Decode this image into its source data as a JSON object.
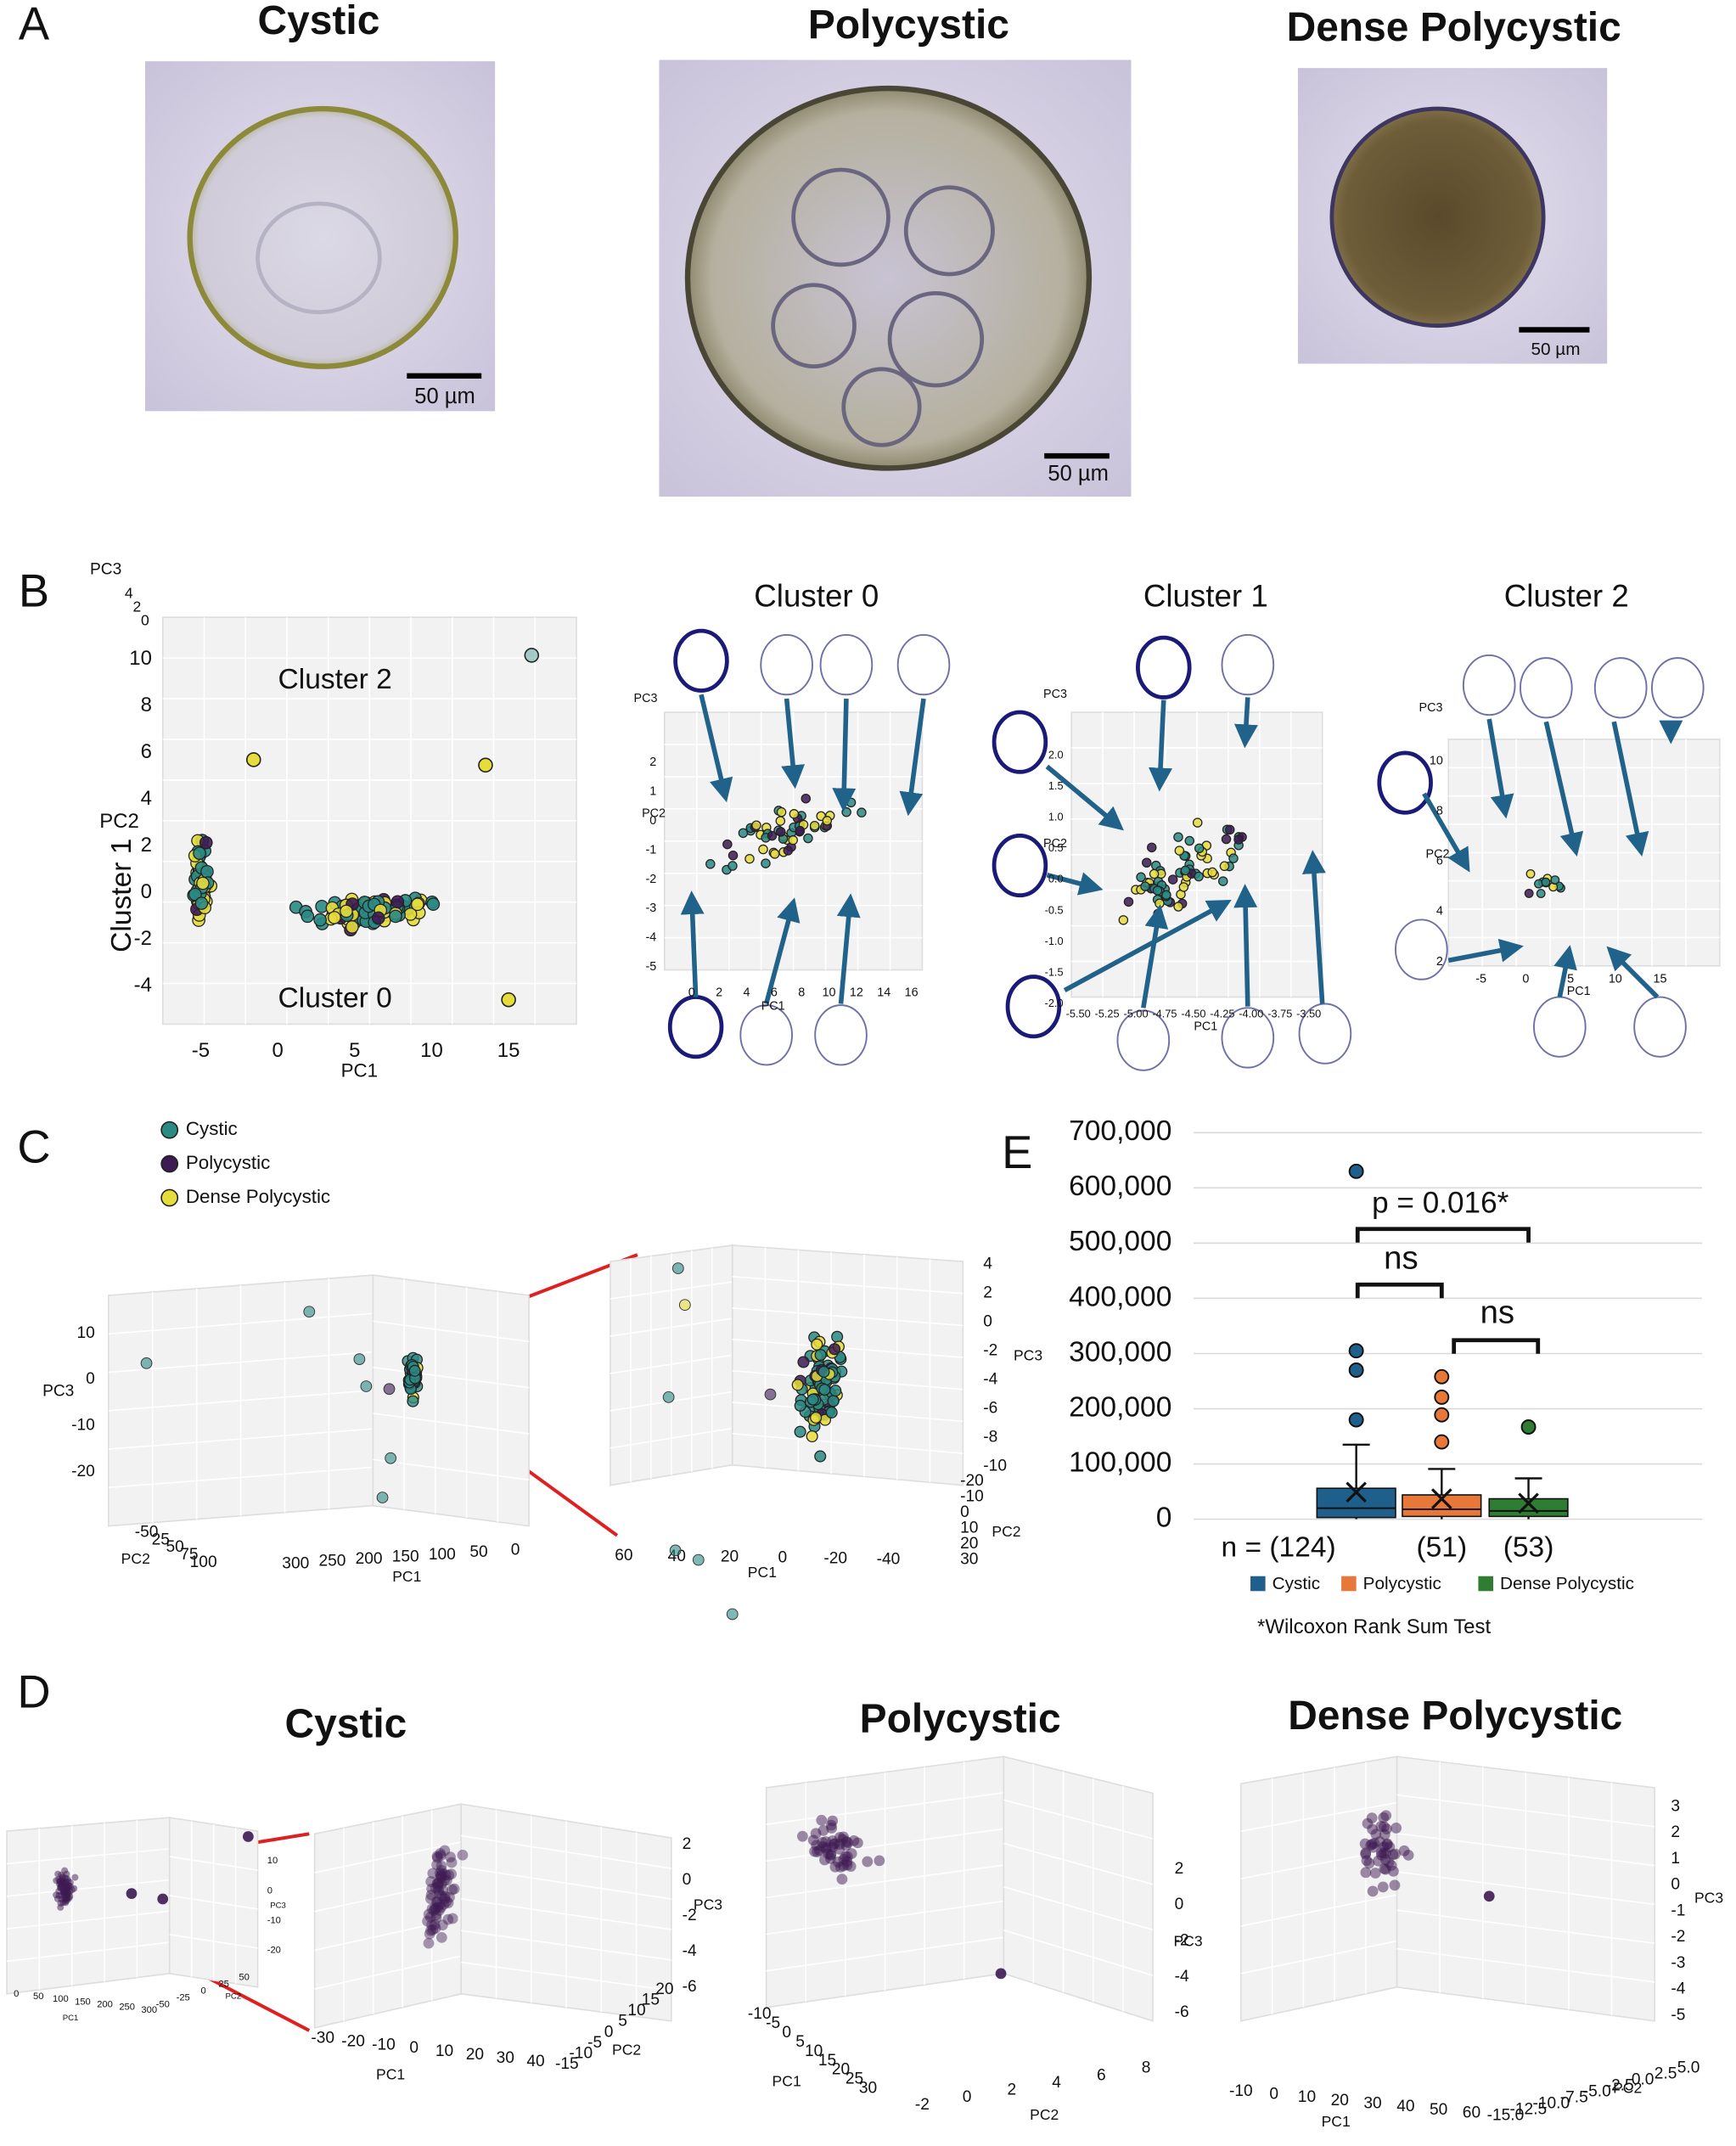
{
  "labels": [
    "A",
    "B",
    "C",
    "D",
    "E"
  ],
  "panel_a": {
    "images": [
      {
        "title": "Cystic",
        "scale_bar": "50 µm"
      },
      {
        "title": "Polycystic",
        "scale_bar": "50 µm"
      },
      {
        "title": "Dense Polycystic",
        "scale_bar": "50 µm"
      }
    ]
  },
  "panel_b": {
    "main": {
      "x_label": "PC1",
      "y_label": "PC2",
      "z_label": "PC3",
      "xticks": [
        "-5",
        "0",
        "5",
        "10",
        "15"
      ],
      "yticks": [
        "10",
        "8",
        "6",
        "4",
        "2",
        "0",
        "-2",
        "-4"
      ],
      "zticks": [
        "4",
        "2",
        "0"
      ],
      "clusters": [
        "Cluster 2",
        "Cluster 1",
        "Cluster 0"
      ]
    },
    "subplots": [
      {
        "title": "Cluster 0",
        "x_label": "PC1",
        "y_label": "PC2",
        "z_label": "PC3",
        "xticks": [
          "0",
          "2",
          "4",
          "6",
          "8",
          "10",
          "12",
          "14",
          "16"
        ],
        "yticks": [
          "2",
          "1",
          "0",
          "-1",
          "-2",
          "-3",
          "-4",
          "-5"
        ]
      },
      {
        "title": "Cluster 1",
        "x_label": "PC1",
        "y_label": "PC2",
        "z_label": "PC3",
        "xticks": [
          "-5.50",
          "-5.25",
          "-5.00",
          "-4.75",
          "-4.50",
          "-4.25",
          "-4.00",
          "-3.75",
          "-3.50"
        ],
        "yticks": [
          "2.0",
          "1.5",
          "1.0",
          "0.5",
          "0.0",
          "-0.5",
          "-1.0",
          "-1.5",
          "-2.0"
        ]
      },
      {
        "title": "Cluster 2",
        "x_label": "PC1",
        "y_label": "PC2",
        "z_label": "PC3",
        "xticks": [
          "-5",
          "0",
          "5",
          "10",
          "15"
        ],
        "yticks": [
          "10",
          "8",
          "6",
          "4",
          "2"
        ]
      }
    ]
  },
  "panel_c": {
    "legend": [
      "Cystic",
      "Polycystic",
      "Dense Polycystic"
    ],
    "overview": {
      "x_label": "PC1",
      "y_label": "PC2",
      "z_label": "PC3",
      "xticks": [
        "300",
        "250",
        "200",
        "150",
        "100",
        "50",
        "0"
      ],
      "yticks": [
        "-50",
        "25",
        "50",
        "75",
        "100"
      ],
      "zticks": [
        "10",
        "0",
        "-10",
        "-20"
      ]
    },
    "zoom": {
      "x_label": "PC1",
      "y_label": "PC2",
      "z_label": "PC3",
      "xticks": [
        "60",
        "40",
        "20",
        "0",
        "-20",
        "-40"
      ],
      "yticks": [
        "-20",
        "-10",
        "0",
        "10",
        "20",
        "30"
      ],
      "zticks": [
        "4",
        "2",
        "0",
        "-2",
        "-4",
        "-6",
        "-8",
        "-10"
      ]
    }
  },
  "panel_d": {
    "titles": [
      "Cystic",
      "Polycystic",
      "Dense Polycystic"
    ],
    "plots": [
      {
        "x_label": "PC1",
        "y_label": "PC2",
        "z_label": "PC3",
        "xticks": [
          "0",
          "50",
          "100",
          "150",
          "200",
          "250",
          "300"
        ],
        "yticks": [
          "-50",
          "-25",
          "0",
          "25",
          "50"
        ],
        "zticks": [
          "10",
          "0",
          "-10",
          "-20"
        ]
      },
      {
        "x_label": "PC1",
        "y_label": "PC2",
        "z_label": "PC3",
        "xticks": [
          "-30",
          "-20",
          "-10",
          "0",
          "10",
          "20",
          "30",
          "40"
        ],
        "yticks": [
          "-15",
          "-10",
          "-5",
          "0",
          "5",
          "10",
          "15",
          "20"
        ],
        "zticks": [
          "2",
          "0",
          "-2",
          "-4",
          "-6"
        ]
      },
      {
        "x_label": "PC1",
        "y_label": "PC2",
        "z_label": "PC3",
        "xticks": [
          "-10",
          "-5",
          "0",
          "5",
          "10",
          "15",
          "20",
          "25",
          "30"
        ],
        "yticks": [
          "-2",
          "0",
          "2",
          "4",
          "6",
          "8"
        ],
        "zticks": [
          "2",
          "0",
          "-2",
          "-4",
          "-6"
        ]
      },
      {
        "x_label": "PC1",
        "y_label": "PC2",
        "z_label": "PC3",
        "xticks": [
          "-10",
          "0",
          "10",
          "20",
          "30",
          "40",
          "50",
          "60"
        ],
        "yticks": [
          "5.0",
          "2.5",
          "0.0",
          "-2.5",
          "-5.0",
          "-7.5",
          "-10.0",
          "-12.5",
          "-15.0"
        ],
        "zticks": [
          "3",
          "2",
          "1",
          "0",
          "-1",
          "-2",
          "-3",
          "-4",
          "-5"
        ]
      }
    ]
  },
  "chart_data": {
    "type": "box",
    "ylim": [
      0,
      700000
    ],
    "yticks": [
      0,
      {
        "value": 100000,
        "label": "100,000"
      },
      {
        "value": 200000,
        "label": "200,000"
      },
      {
        "value": 300000,
        "label": "300,000"
      },
      {
        "value": 400000,
        "label": "400,000"
      },
      {
        "value": 500000,
        "label": "500,000"
      },
      {
        "value": 600000,
        "label": "600,000"
      },
      {
        "value": 700000,
        "label": "700,000"
      }
    ],
    "grid": true,
    "legend": "bottom",
    "series": [
      {
        "name": "Cystic",
        "color": "#1f5f8b",
        "whisker_low": 0,
        "q1": 3000,
        "median": 20000,
        "q3": 56000,
        "whisker_high": 135000,
        "mean": 49000,
        "outliers": [
          180000,
          270000,
          305000,
          630000
        ]
      },
      {
        "name": "Polycystic",
        "color": "#e8773a",
        "whisker_low": 0,
        "q1": 5000,
        "median": 18000,
        "q3": 44000,
        "whisker_high": 91000,
        "mean": 37000,
        "outliers": [
          140000,
          189000,
          221000,
          258000
        ]
      },
      {
        "name": "Dense Polycystic",
        "color": "#2e7d32",
        "whisker_low": 0,
        "q1": 5000,
        "median": 15000,
        "q3": 37000,
        "whisker_high": 74000,
        "mean": 29000,
        "outliers": [
          167000
        ]
      }
    ],
    "n_labels": [
      "n = (124)",
      "(51)",
      "(53)"
    ],
    "annotations": [
      "p = 0.016*",
      "ns",
      "ns"
    ],
    "footnote": "*Wilcoxon Rank Sum Test"
  }
}
